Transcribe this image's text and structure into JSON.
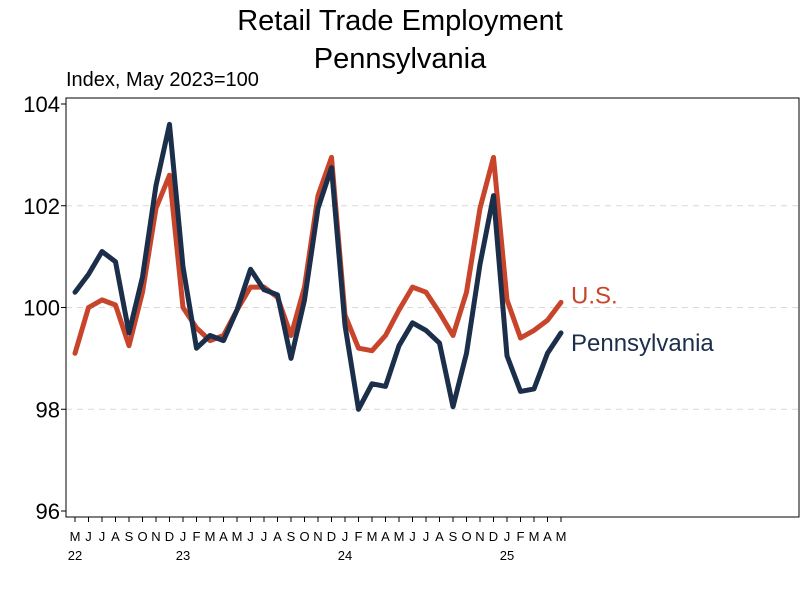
{
  "chart_data": {
    "type": "line",
    "title": "Retail Trade Employment",
    "subtitle": "Pennsylvania",
    "ylabel": "Index, May 2023=100",
    "ylim": [
      96,
      104
    ],
    "yticks": [
      96,
      98,
      100,
      102,
      104
    ],
    "grid": true,
    "categories": [
      "M",
      "J",
      "J",
      "A",
      "S",
      "O",
      "N",
      "D",
      "J",
      "F",
      "M",
      "A",
      "M",
      "J",
      "J",
      "A",
      "S",
      "O",
      "N",
      "D",
      "J",
      "F",
      "M",
      "A",
      "M",
      "J",
      "J",
      "A",
      "S",
      "O",
      "N",
      "D",
      "J",
      "F",
      "M",
      "A",
      "M"
    ],
    "years": [
      {
        "label": "22",
        "index": 0
      },
      {
        "label": "23",
        "index": 8
      },
      {
        "label": "24",
        "index": 20
      },
      {
        "label": "25",
        "index": 32
      }
    ],
    "series": [
      {
        "name": "U.S.",
        "color": "#c8452c",
        "values": [
          99.1,
          100.0,
          100.15,
          100.05,
          99.25,
          100.3,
          101.95,
          102.6,
          100.0,
          99.6,
          99.35,
          99.45,
          99.95,
          100.4,
          100.4,
          100.2,
          99.45,
          100.4,
          102.2,
          102.95,
          99.85,
          99.2,
          99.15,
          99.45,
          99.95,
          100.4,
          100.3,
          99.9,
          99.45,
          100.3,
          101.95,
          102.95,
          100.15,
          99.4,
          99.55,
          99.75,
          100.1
        ]
      },
      {
        "name": "Pennsylvania",
        "color": "#1b2e4a",
        "values": [
          100.3,
          100.65,
          101.1,
          100.9,
          99.5,
          100.6,
          102.4,
          103.6,
          100.8,
          99.2,
          99.45,
          99.35,
          99.95,
          100.75,
          100.35,
          100.25,
          99.0,
          100.15,
          101.95,
          102.75,
          99.65,
          98.0,
          98.5,
          98.45,
          99.25,
          99.7,
          99.55,
          99.3,
          98.05,
          99.1,
          100.85,
          102.2,
          99.05,
          98.35,
          98.4,
          99.1,
          99.5
        ]
      }
    ]
  }
}
